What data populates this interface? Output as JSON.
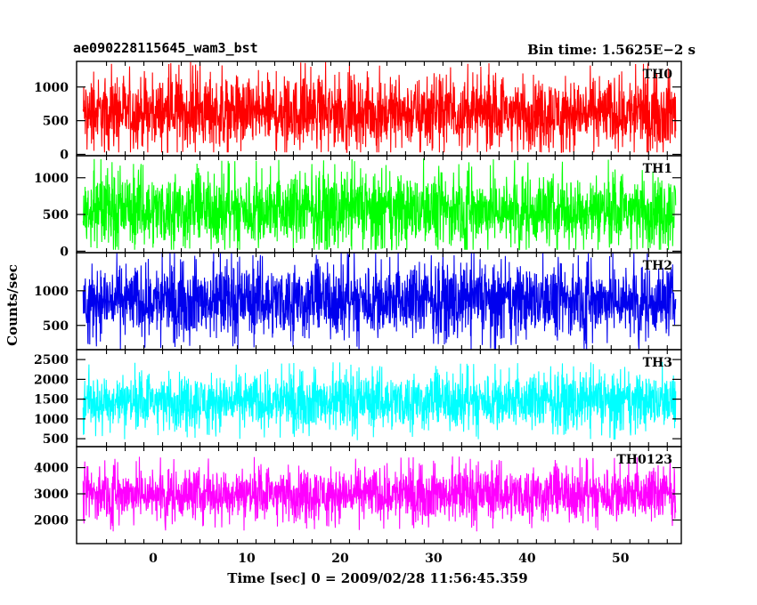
{
  "chart_data": {
    "type": "line",
    "title_left": "ae090228115645_wam3_bst",
    "title_right": "Bin time: 1.5625E−2 s",
    "xlabel": "Time [sec] 0 = 2009/02/28 11:56:45.359",
    "ylabel": "Counts/sec",
    "xlim": [
      -8.2,
      56.5
    ],
    "x_ticks": [
      0,
      10,
      20,
      30,
      40,
      50
    ],
    "x_tick_labels": [
      "0",
      "10",
      "20",
      "30",
      "40",
      "50"
    ],
    "data_range": [
      -7.5,
      55.9
    ],
    "panels": [
      {
        "name": "TH0",
        "color": "#ff0000",
        "ylim": [
          -20,
          1380
        ],
        "y_ticks": [
          0,
          500,
          1000
        ],
        "y_tick_labels": [
          "0",
          "500",
          "1000"
        ],
        "baseline": 620,
        "spread": 470,
        "min": 30,
        "max": 1380
      },
      {
        "name": "TH1",
        "color": "#00ff00",
        "ylim": [
          -20,
          1300
        ],
        "y_ticks": [
          0,
          500,
          1000
        ],
        "y_tick_labels": [
          "0",
          "500",
          "1000"
        ],
        "baseline": 560,
        "spread": 440,
        "min": 20,
        "max": 1300
      },
      {
        "name": "TH2",
        "color": "#0000ee",
        "ylim": [
          150,
          1550
        ],
        "y_ticks": [
          500,
          1000
        ],
        "y_tick_labels": [
          "500",
          "1000"
        ],
        "baseline": 860,
        "spread": 460,
        "min": 150,
        "max": 1550
      },
      {
        "name": "TH3",
        "color": "#00ffff",
        "ylim": [
          300,
          2750
        ],
        "y_ticks": [
          500,
          1000,
          1500,
          2000,
          2500
        ],
        "y_tick_labels": [
          "500",
          "1000",
          "1500",
          "2000",
          "2500"
        ],
        "baseline": 1450,
        "spread": 620,
        "min": 350,
        "max": 2700
      },
      {
        "name": "TH0123",
        "color": "#ff00ff",
        "ylim": [
          1100,
          4800
        ],
        "y_ticks": [
          2000,
          3000,
          4000
        ],
        "y_tick_labels": [
          "2000",
          "3000",
          "4000"
        ],
        "baseline": 3000,
        "spread": 900,
        "min": 1150,
        "max": 4700
      }
    ]
  }
}
